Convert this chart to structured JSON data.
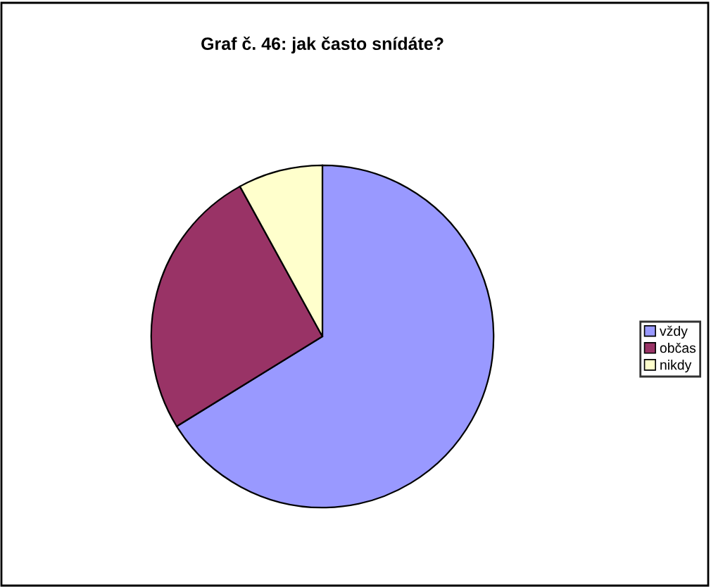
{
  "chart_data": {
    "type": "pie",
    "title": "Graf č. 46: jak často snídáte?",
    "categories": [
      "vždy",
      "občas",
      "nikdy"
    ],
    "values": [
      66.2,
      25.8,
      8.0
    ],
    "colors": [
      "#9999ff",
      "#993366",
      "#ffffcc"
    ],
    "legend": "right"
  }
}
